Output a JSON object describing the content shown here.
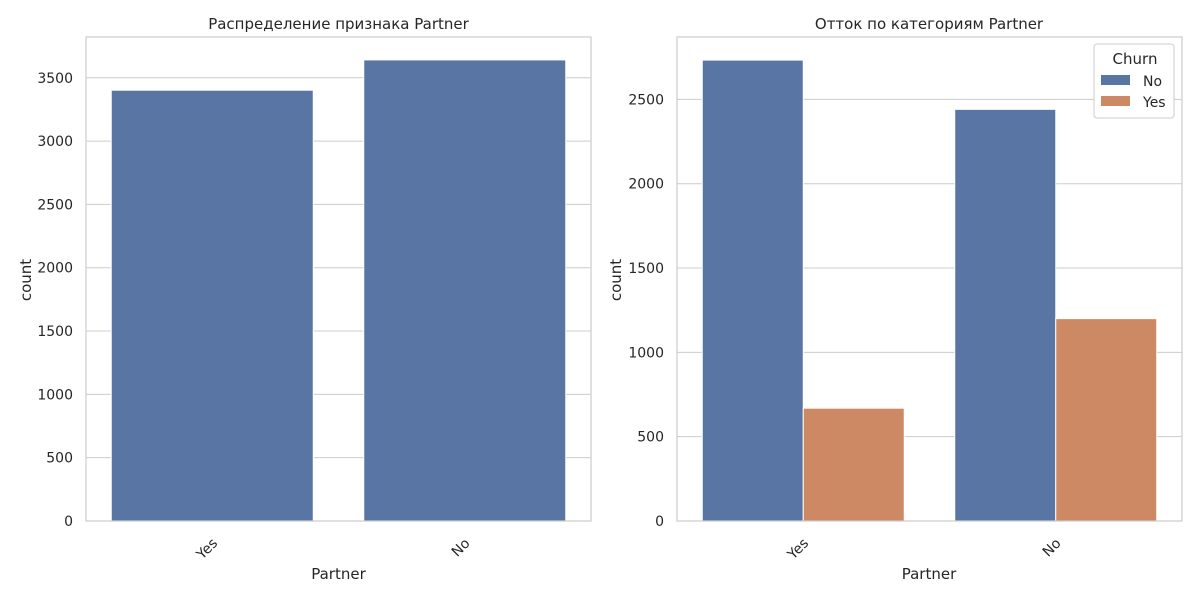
{
  "chart_data": [
    {
      "type": "bar",
      "title": "Распределение признака Partner",
      "xlabel": "Partner",
      "ylabel": "count",
      "categories": [
        "Yes",
        "No"
      ],
      "values": [
        3402,
        3641
      ],
      "ylim": [
        0,
        3822
      ],
      "yticks": [
        0,
        500,
        1000,
        1500,
        2000,
        2500,
        3000,
        3500
      ],
      "grid": true,
      "bar_color": "#5975a4"
    },
    {
      "type": "bar",
      "title": "Отток по категориям Partner",
      "xlabel": "Partner",
      "ylabel": "count",
      "categories": [
        "Yes",
        "No"
      ],
      "series": [
        {
          "name": "No",
          "values": [
            2733,
            2441
          ],
          "color": "#5975a4"
        },
        {
          "name": "Yes",
          "values": [
            669,
            1200
          ],
          "color": "#cc8963"
        }
      ],
      "legend": {
        "title": "Churn",
        "position": "top-right"
      },
      "ylim": [
        0,
        2870
      ],
      "yticks": [
        0,
        500,
        1000,
        1500,
        2000,
        2500
      ],
      "grid": true
    }
  ]
}
